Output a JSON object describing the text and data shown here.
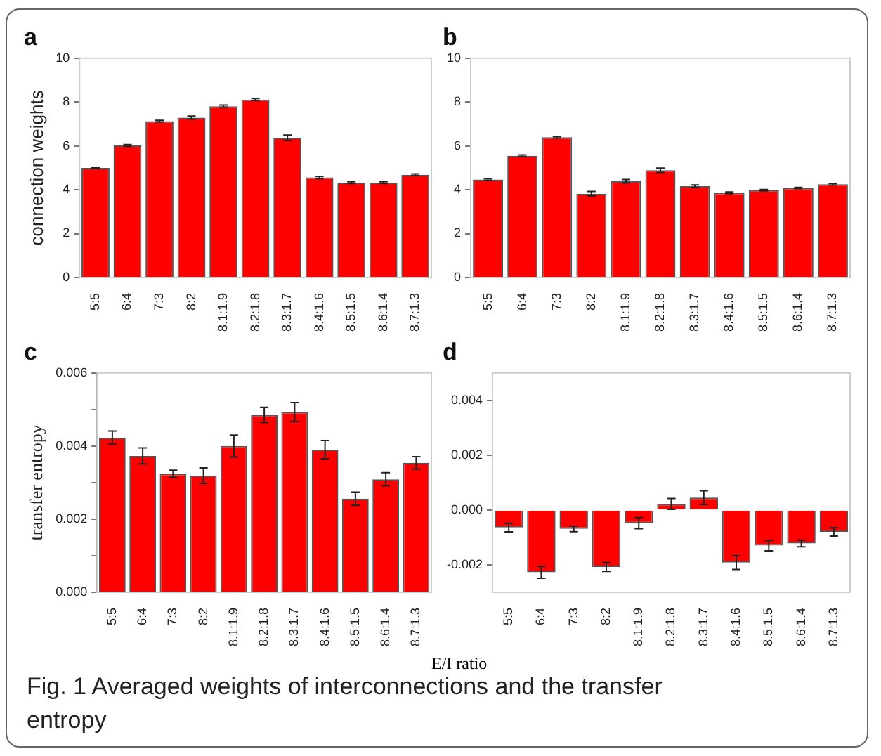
{
  "chart_data": [
    {
      "type": "bar",
      "title": "a",
      "ylabel": "connection weights",
      "categories": [
        "5:5",
        "6:4",
        "7:3",
        "8:2",
        "8.1:1.9",
        "8.2:1.8",
        "8.3:1.7",
        "8.4:1.6",
        "8.5:1.5",
        "8.6:1.4",
        "8.7:1.3"
      ],
      "values": [
        5.0,
        6.02,
        7.13,
        7.29,
        7.81,
        8.11,
        6.37,
        4.56,
        4.32,
        4.32,
        4.68
      ],
      "errors": [
        0.03,
        0.04,
        0.04,
        0.07,
        0.05,
        0.05,
        0.12,
        0.05,
        0.04,
        0.04,
        0.04
      ],
      "color": "#ff0000",
      "ylim": [
        0,
        10
      ],
      "yticks": [
        0,
        2,
        4,
        6,
        8,
        10
      ],
      "grid": false
    },
    {
      "type": "bar",
      "title": "b",
      "categories": [
        "5:5",
        "6:4",
        "7:3",
        "8:2",
        "8.1:1.9",
        "8.2:1.8",
        "8.3:1.7",
        "8.4:1.6",
        "8.5:1.5",
        "8.6:1.4",
        "8.7:1.3"
      ],
      "values": [
        4.47,
        5.55,
        6.4,
        3.82,
        4.39,
        4.89,
        4.16,
        3.86,
        3.98,
        4.08,
        4.25
      ],
      "errors": [
        0.04,
        0.04,
        0.04,
        0.1,
        0.08,
        0.1,
        0.06,
        0.04,
        0.03,
        0.03,
        0.04
      ],
      "color": "#ff0000",
      "ylim": [
        0,
        10
      ],
      "yticks": [
        0,
        2,
        4,
        6,
        8,
        10
      ],
      "grid": false
    },
    {
      "type": "bar",
      "title": "c",
      "ylabel": "transfer entropy",
      "categories": [
        "5:5",
        "6:4",
        "7:3",
        "8:2",
        "8.1:1.9",
        "8.2:1.8",
        "8.3:1.7",
        "8.4:1.6",
        "8.5:1.5",
        "8.6:1.4",
        "8.7:1.3"
      ],
      "values": [
        0.00423,
        0.00373,
        0.00324,
        0.00319,
        0.004,
        0.00485,
        0.00493,
        0.0039,
        0.00256,
        0.00309,
        0.00354
      ],
      "errors": [
        0.00018,
        0.00022,
        0.0001,
        0.00021,
        0.0003,
        0.00021,
        0.00026,
        0.00025,
        0.00018,
        0.00018,
        0.00017
      ],
      "color": "#ff0000",
      "ylim": [
        0,
        0.006
      ],
      "yticks": [
        {
          "value": 0,
          "label": "0.000"
        },
        {
          "value": 0.001,
          "label": null
        },
        {
          "value": 0.002,
          "label": "0.002"
        },
        {
          "value": 0.003,
          "label": null
        },
        {
          "value": 0.004,
          "label": "0.004"
        },
        {
          "value": 0.005,
          "label": null
        },
        {
          "value": 0.006,
          "label": "0.006"
        }
      ],
      "grid": false
    },
    {
      "type": "bar",
      "title": "d",
      "xlabel": "E/I ratio",
      "categories": [
        "5:5",
        "6:4",
        "7:3",
        "8:2",
        "8.1:1.9",
        "8.2:1.8",
        "8.3:1.7",
        "8.4:1.6",
        "8.5:1.5",
        "8.6:1.4",
        "8.7:1.3"
      ],
      "values": [
        -0.00064,
        -0.00227,
        -0.00069,
        -0.00208,
        -0.00048,
        0.00022,
        0.00045,
        -0.00192,
        -0.0013,
        -0.00122,
        -0.0008
      ],
      "errors": [
        0.00016,
        0.00022,
        0.0001,
        0.00016,
        0.0002,
        0.0002,
        0.00025,
        0.00025,
        0.00019,
        0.00012,
        0.00015
      ],
      "color": "#ff0000",
      "ylim": [
        -0.003,
        0.005
      ],
      "yticks": [
        {
          "value": -0.002,
          "label": "-0.002"
        },
        {
          "value": 0,
          "label": "0.000"
        },
        {
          "value": 0.002,
          "label": "0.002"
        },
        {
          "value": 0.004,
          "label": "0.004"
        }
      ],
      "grid": false,
      "annotations": [
        "Fig. 1  Averaged weights of interconnections and the transfer entropy"
      ]
    }
  ]
}
